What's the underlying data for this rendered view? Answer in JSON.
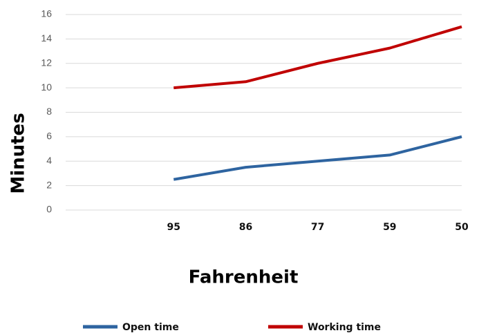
{
  "chart_data": {
    "type": "line",
    "x_label": "Fahrenheit",
    "y_label": "Minutes",
    "categories": [
      null,
      "95",
      "86",
      "77",
      "59",
      "50"
    ],
    "series": [
      {
        "name": "Open time",
        "color": "#2e64a0",
        "values": [
          null,
          2.5,
          3.5,
          4,
          4.5,
          6
        ]
      },
      {
        "name": "Working time",
        "color": "#c00000",
        "values": [
          null,
          10,
          10.5,
          12,
          13.25,
          15
        ]
      }
    ],
    "ylim": [
      0,
      16
    ],
    "yticks": [
      0,
      2,
      4,
      6,
      8,
      10,
      12,
      14,
      16
    ],
    "grid": true,
    "legend": "bottom"
  }
}
